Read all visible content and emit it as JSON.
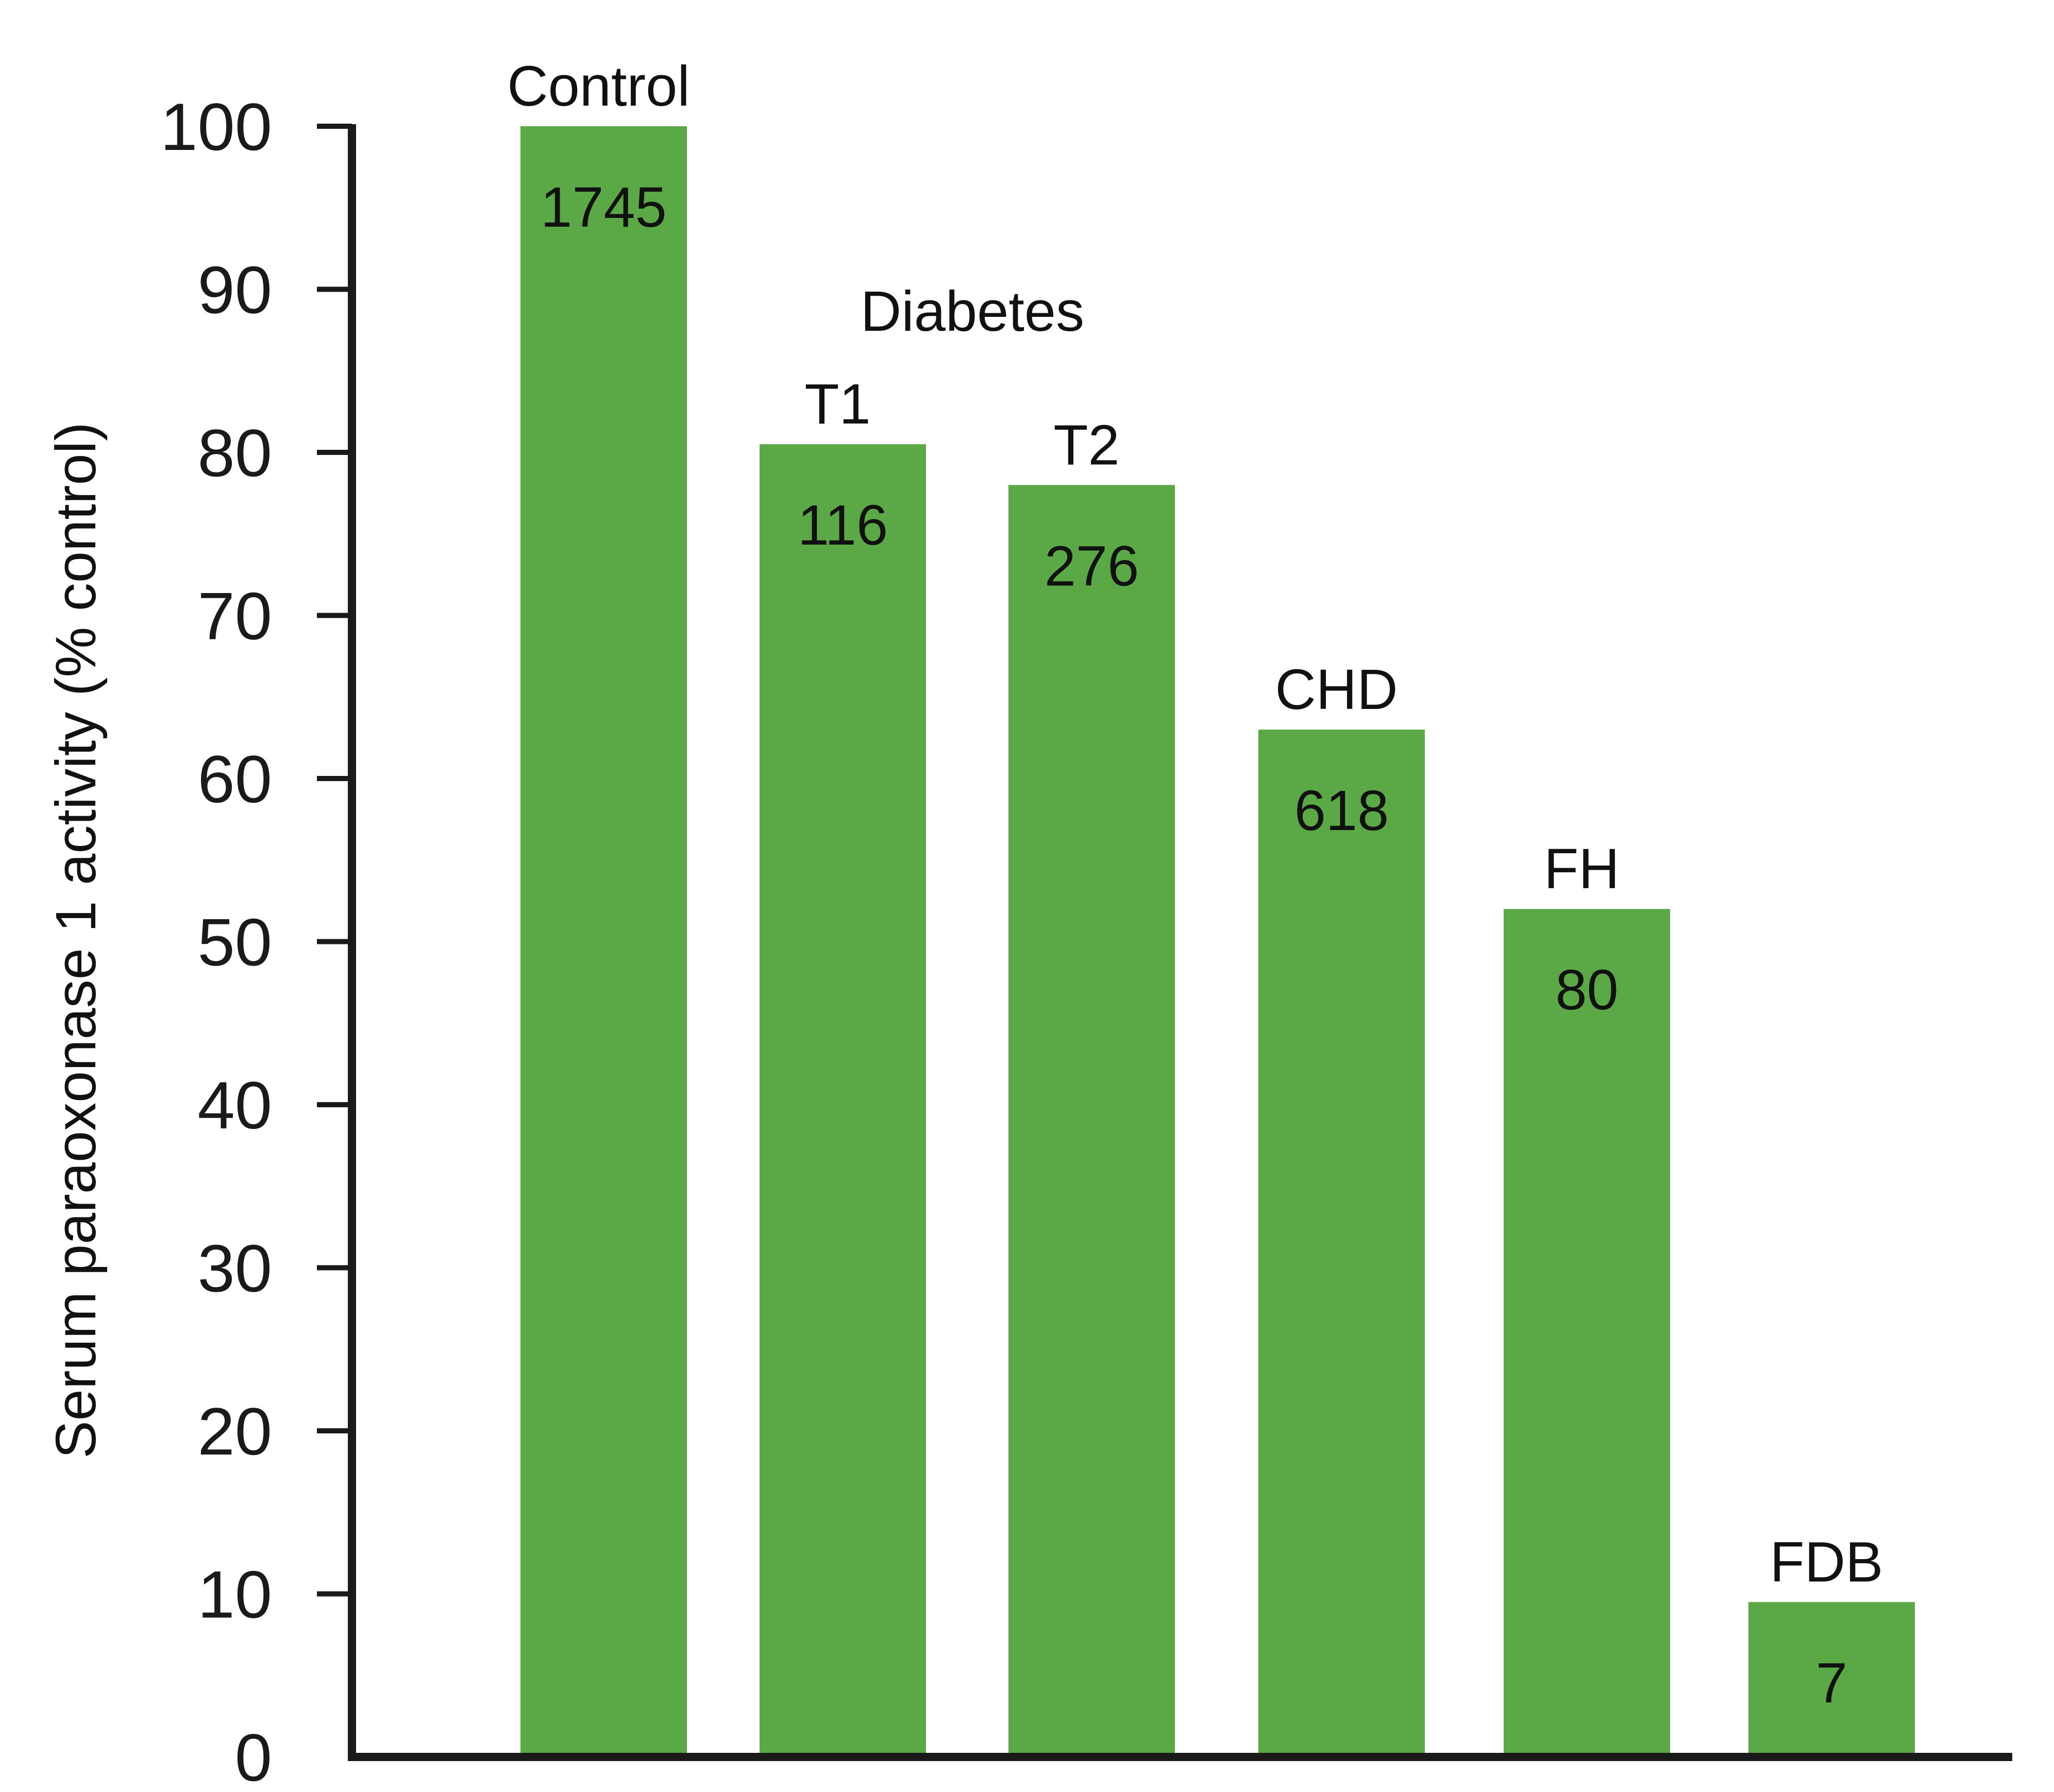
{
  "chart_data": {
    "type": "bar",
    "title": "",
    "xlabel": "",
    "ylabel": "Serum paraoxonase 1 activity (% control)",
    "ylim": [
      0,
      100
    ],
    "yticks": [
      "0",
      "10",
      "20",
      "30",
      "40",
      "50",
      "60",
      "70",
      "80",
      "90",
      "100"
    ],
    "grid": false,
    "legend": "none",
    "bar_color": "#5ba946",
    "axis_color": "#1a1a1a",
    "categories": [
      "Control",
      "T1",
      "T2",
      "CHD",
      "FH",
      "FDB"
    ],
    "values": [
      100,
      80.5,
      78,
      63,
      52,
      9.5
    ],
    "n_labels": [
      "1745",
      "116",
      "276",
      "618",
      "80",
      "7"
    ],
    "group_label": "Diabetes"
  }
}
